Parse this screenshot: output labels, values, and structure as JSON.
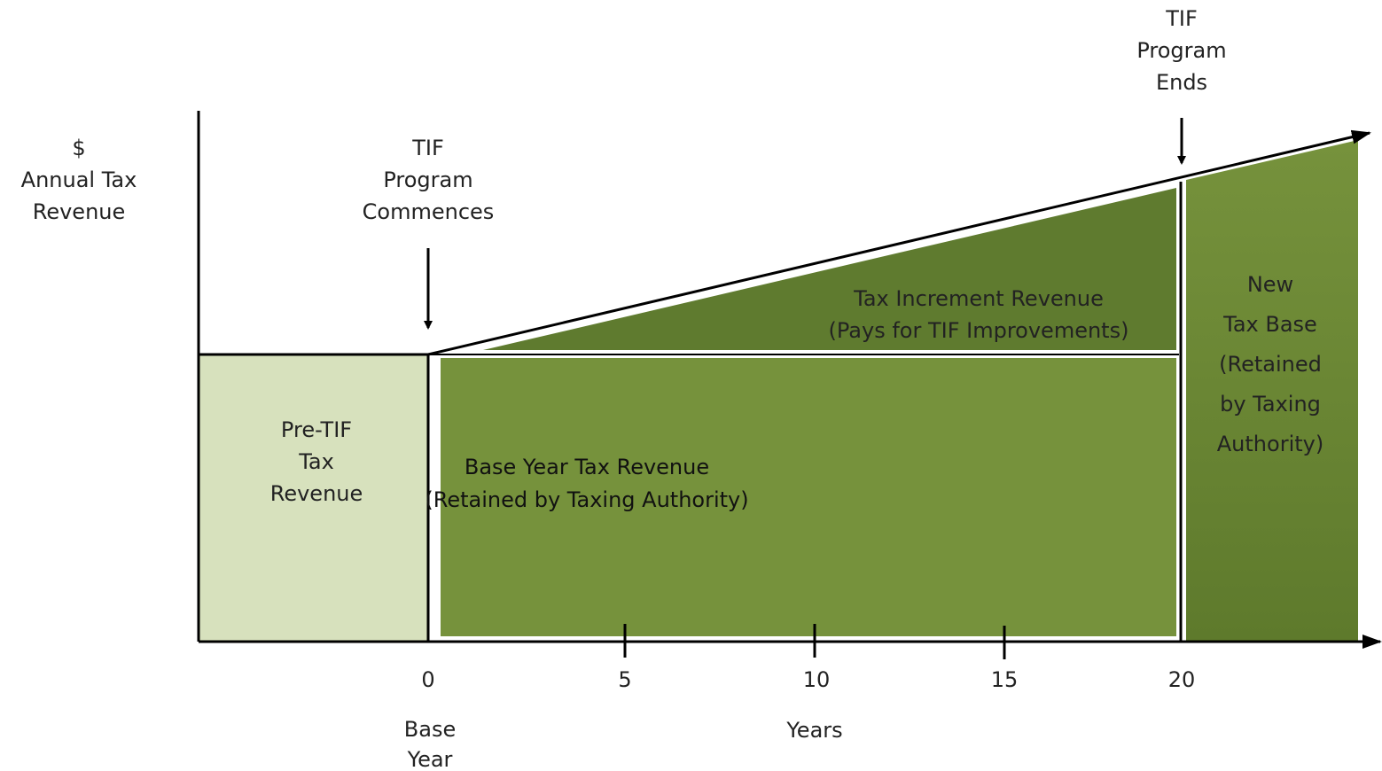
{
  "y_axis_label": [
    "$",
    "Annual Tax",
    "Revenue"
  ],
  "annotations": {
    "commence": [
      "TIF",
      "Program",
      "Commences"
    ],
    "end": [
      "TIF",
      "Program",
      "Ends"
    ]
  },
  "regions": {
    "pre_tif": [
      "Pre-TIF",
      "Tax",
      "Revenue"
    ],
    "increment": [
      "Tax Increment Revenue",
      "(Pays for TIF Improvements)"
    ],
    "base_year": [
      "Base Year Tax Revenue",
      "(Retained by Taxing Authority)"
    ],
    "new_base": [
      "New",
      "Tax Base",
      "(Retained",
      "by Taxing",
      "Authority)"
    ]
  },
  "x_ticks": [
    "0",
    "5",
    "10",
    "15",
    "20"
  ],
  "x_labels": {
    "base_year": [
      "Base",
      "Year"
    ],
    "axis": "Years"
  }
}
